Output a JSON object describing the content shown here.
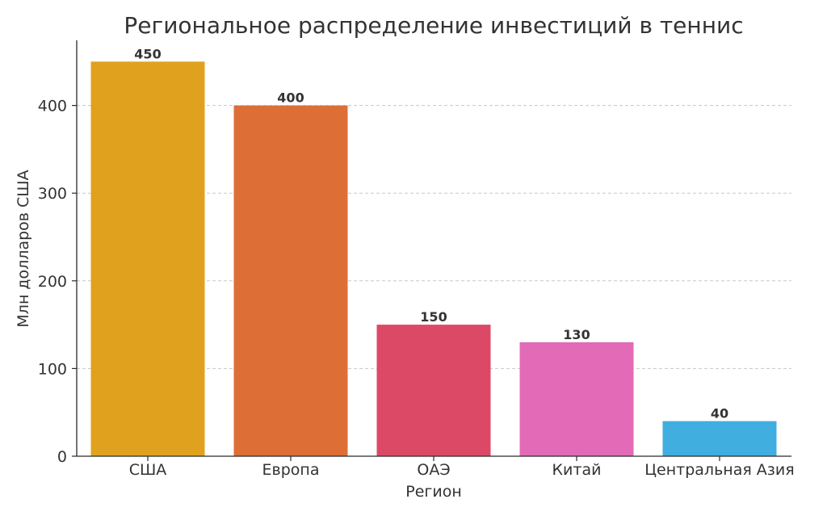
{
  "chart_data": {
    "type": "bar",
    "title": "Региональное распределение инвестиций в теннис",
    "xlabel": "Регион",
    "ylabel": "Млн долларов США",
    "categories": [
      "США",
      "Европа",
      "ОАЭ",
      "Китай",
      "Центральная Азия"
    ],
    "values": [
      450,
      400,
      150,
      130,
      40
    ],
    "value_labels": [
      "450",
      "400",
      "150",
      "130",
      "40"
    ],
    "colors": [
      "#E0A21E",
      "#DD6F36",
      "#DC4966",
      "#E26AB7",
      "#40AEDF"
    ],
    "ylim": [
      0,
      475
    ],
    "yticks": [
      0,
      100,
      200,
      300,
      400
    ],
    "ytick_labels": [
      "0",
      "100",
      "200",
      "300",
      "400"
    ],
    "grid": true,
    "grid_axis": "y",
    "legend": "none"
  }
}
